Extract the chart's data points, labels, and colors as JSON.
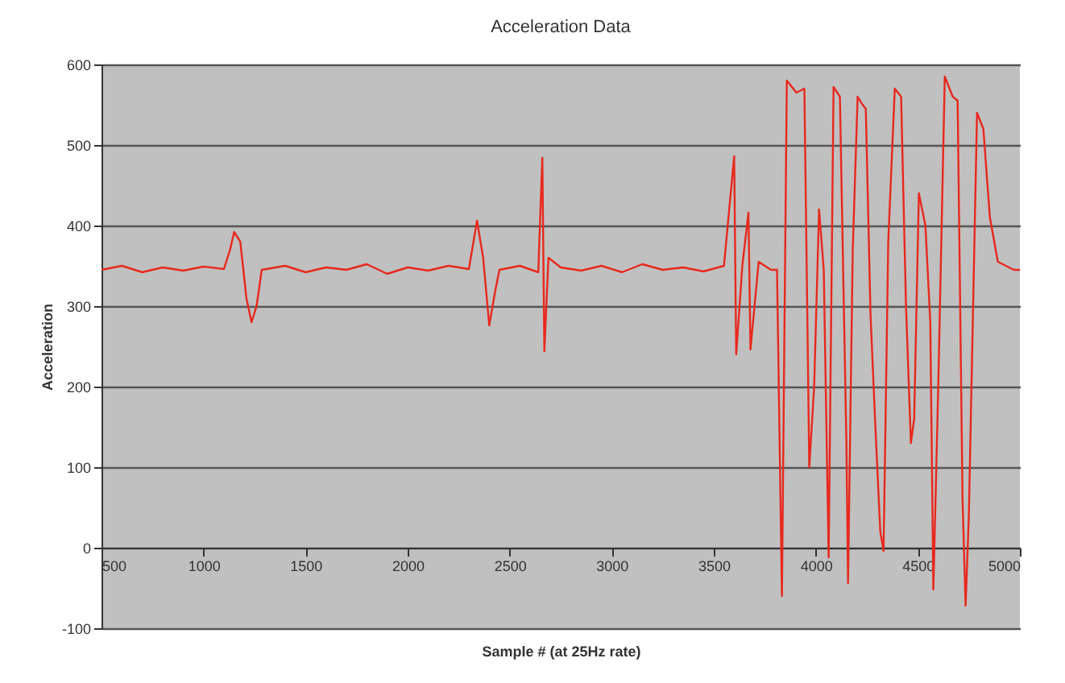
{
  "chart_data": {
    "type": "line",
    "title": "Acceleration Data",
    "xlabel": "Sample # (at 25Hz rate)",
    "ylabel": "Acceleration",
    "xlim": [
      500,
      5000
    ],
    "xticks": [
      500,
      1000,
      1500,
      2000,
      2500,
      3000,
      3500,
      4000,
      4500,
      5000
    ],
    "ylim": [
      -100,
      600
    ],
    "yticks": [
      -100,
      0,
      100,
      200,
      300,
      400,
      500,
      600
    ],
    "grid": "y",
    "x": [
      500,
      600,
      700,
      800,
      900,
      1000,
      1100,
      1130,
      1150,
      1180,
      1210,
      1235,
      1260,
      1285,
      1400,
      1500,
      1600,
      1700,
      1800,
      1900,
      2000,
      2100,
      2200,
      2300,
      2340,
      2370,
      2400,
      2430,
      2450,
      2550,
      2640,
      2660,
      2670,
      2690,
      2750,
      2850,
      2950,
      3050,
      3150,
      3250,
      3350,
      3450,
      3550,
      3600,
      3610,
      3640,
      3670,
      3680,
      3720,
      3780,
      3810,
      3834,
      3858,
      3905,
      3944,
      3968,
      3992,
      4016,
      4039,
      4063,
      4087,
      4118,
      4150,
      4158,
      4181,
      4205,
      4229,
      4245,
      4268,
      4292,
      4316,
      4332,
      4355,
      4387,
      4418,
      4442,
      4466,
      4482,
      4505,
      4537,
      4561,
      4576,
      4600,
      4632,
      4671,
      4695,
      4719,
      4734,
      4750,
      4790,
      4821,
      4853,
      4892,
      4971,
      5000
    ],
    "series": [
      {
        "color": "#e8281e",
        "values": [
          345,
          350,
          342,
          348,
          344,
          349,
          346,
          370,
          392,
          380,
          310,
          280,
          300,
          345,
          350,
          342,
          348,
          345,
          352,
          340,
          348,
          344,
          350,
          346,
          406,
          360,
          276,
          320,
          345,
          350,
          342,
          484,
          244,
          360,
          348,
          344,
          350,
          342,
          352,
          345,
          348,
          343,
          350,
          486,
          240,
          350,
          416,
          246,
          355,
          345,
          345,
          -60,
          580,
          565,
          570,
          100,
          200,
          420,
          345,
          -12,
          572,
          560,
          130,
          -44,
          370,
          560,
          550,
          545,
          290,
          150,
          20,
          -4,
          380,
          570,
          560,
          300,
          130,
          160,
          440,
          400,
          280,
          -52,
          200,
          585,
          560,
          555,
          60,
          -72,
          40,
          540,
          520,
          410,
          355,
          345,
          345
        ]
      }
    ]
  }
}
